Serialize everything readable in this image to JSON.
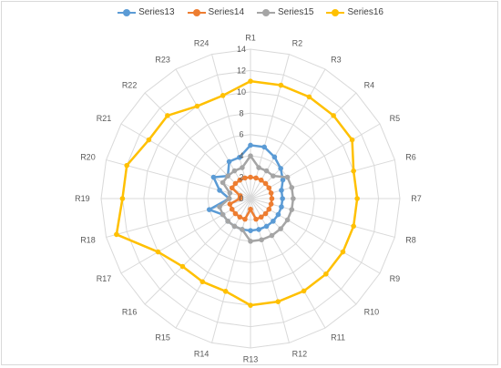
{
  "chart_data": {
    "type": "radar",
    "title": "",
    "categories": [
      "R1",
      "R2",
      "R3",
      "R4",
      "R5",
      "R6",
      "R7",
      "R8",
      "R9",
      "R10",
      "R11",
      "R12",
      "R13",
      "R14",
      "R15",
      "R16",
      "R17",
      "R18",
      "R19",
      "R20",
      "R21",
      "R22",
      "R23",
      "R24"
    ],
    "rlim": [
      0,
      14
    ],
    "ticks": [
      0,
      2,
      4,
      6,
      8,
      10,
      12,
      14
    ],
    "grid": true,
    "legend_position": "top",
    "series": [
      {
        "name": "Series13",
        "color": "#5b9bd5",
        "values": [
          5,
          5,
          4.5,
          4,
          3.5,
          3,
          3,
          3,
          3,
          3,
          3,
          3,
          3,
          3,
          3,
          3,
          3,
          4,
          2,
          3,
          4,
          3,
          4,
          4
        ]
      },
      {
        "name": "Series14",
        "color": "#ed7d31",
        "values": [
          2,
          2,
          2,
          2,
          2,
          2,
          2,
          2,
          2,
          2,
          2,
          2,
          1,
          2,
          2,
          2,
          2,
          2,
          1,
          1,
          2,
          2,
          2,
          2
        ]
      },
      {
        "name": "Series15",
        "color": "#a5a5a5",
        "values": [
          4,
          3,
          3,
          3,
          4,
          4,
          4,
          4,
          4,
          4,
          4,
          4,
          4,
          3,
          3,
          3,
          3,
          3,
          2,
          2,
          3,
          3,
          3,
          3
        ]
      },
      {
        "name": "Series16",
        "color": "#ffc000",
        "values": [
          11,
          11,
          11,
          11,
          11,
          10,
          10,
          10,
          10,
          10,
          10,
          10,
          10,
          9,
          9,
          9,
          10,
          13,
          12,
          12,
          11,
          11,
          10,
          10
        ]
      }
    ]
  }
}
